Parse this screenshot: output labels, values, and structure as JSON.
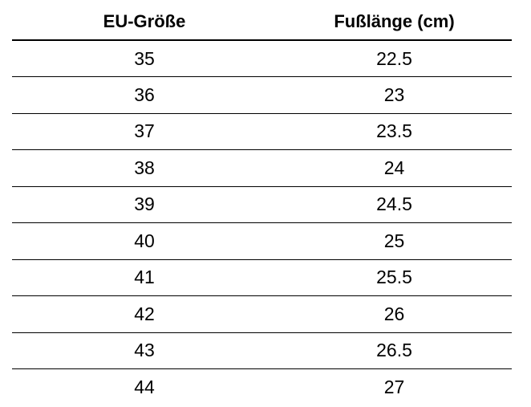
{
  "table": {
    "headers": [
      "EU-Größe",
      "Fußlänge (cm)"
    ],
    "rows": [
      [
        "35",
        "22.5"
      ],
      [
        "36",
        "23"
      ],
      [
        "37",
        "23.5"
      ],
      [
        "38",
        "24"
      ],
      [
        "39",
        "24.5"
      ],
      [
        "40",
        "25"
      ],
      [
        "41",
        "25.5"
      ],
      [
        "42",
        "26"
      ],
      [
        "43",
        "26.5"
      ],
      [
        "44",
        "27"
      ]
    ]
  }
}
